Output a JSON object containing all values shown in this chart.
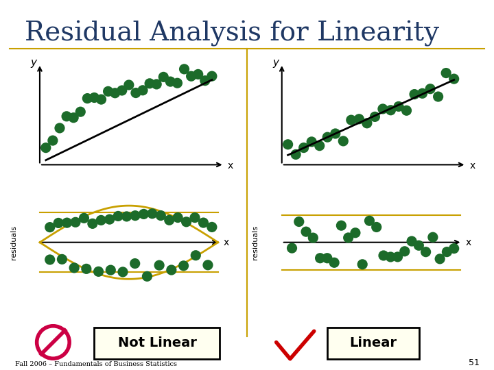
{
  "title": "Residual Analysis for Linearity",
  "title_color": "#1F3864",
  "title_fontsize": 28,
  "bg_color": "#FFFFFF",
  "dot_color": "#1C6B2A",
  "dot_size": 120,
  "footer_text": "Fall 2006 – Fundamentals of Business Statistics",
  "page_num": "51",
  "not_linear_label": "Not Linear",
  "linear_label": "Linear",
  "olive_color": "#C8A000",
  "no_symbol_color": "#CC0044",
  "check_color": "#CC0000",
  "axis_line_color": "black",
  "box_fill": "#FFFFF0"
}
